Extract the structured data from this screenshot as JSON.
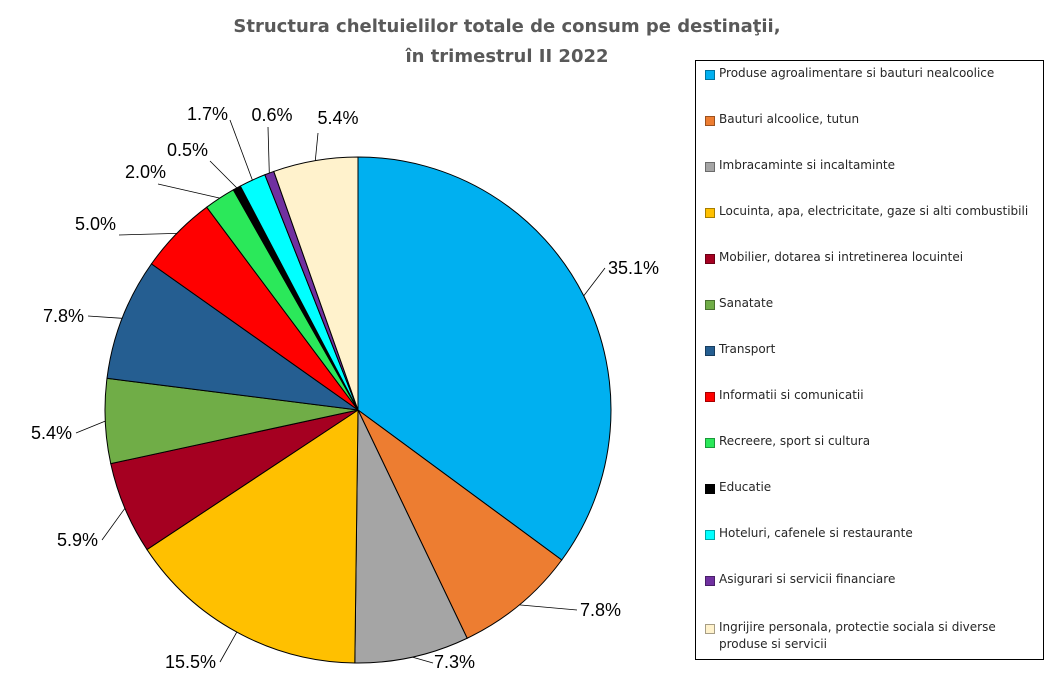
{
  "chart_data": {
    "type": "pie",
    "title": "Structura cheltuielilor totale de consum pe destinaţii,",
    "subtitle": "în trimestrul II 2022",
    "legend_position": "right",
    "slices": [
      {
        "name": "Produse agroalimentare si bauturi nealcoolice",
        "value": 35.1,
        "label": "35.1%",
        "color": "#00B0F0"
      },
      {
        "name": "Bauturi alcoolice, tutun",
        "value": 7.8,
        "label": "7.8%",
        "color": "#ED7D31"
      },
      {
        "name": "Imbracaminte si incaltaminte",
        "value": 7.3,
        "label": "7.3%",
        "color": "#A5A5A5"
      },
      {
        "name": "Locuinta, apa, electricitate, gaze si alti combustibili",
        "value": 15.5,
        "label": "15.5%",
        "color": "#FFC000"
      },
      {
        "name": "Mobilier, dotarea si intretinerea locuintei",
        "value": 5.9,
        "label": "5.9%",
        "color": "#A50021"
      },
      {
        "name": "Sanatate",
        "value": 5.4,
        "label": "5.4%",
        "color": "#70AD47"
      },
      {
        "name": "Transport",
        "value": 7.8,
        "label": "7.8%",
        "color": "#255E91"
      },
      {
        "name": "Informatii si comunicatii",
        "value": 5.0,
        "label": "5.0%",
        "color": "#FF0000"
      },
      {
        "name": "Recreere, sport si cultura",
        "value": 2.0,
        "label": "2.0%",
        "color": "#2BE85A"
      },
      {
        "name": "Educatie",
        "value": 0.5,
        "label": "0.5%",
        "color": "#000000"
      },
      {
        "name": "Hoteluri, cafenele si restaurante",
        "value": 1.7,
        "label": "1.7%",
        "color": "#00FFFF"
      },
      {
        "name": "Asigurari si servicii financiare",
        "value": 0.6,
        "label": "0.6%",
        "color": "#7030A0"
      },
      {
        "name": "Ingrijire personala, protectie sociala si diverse produse si servicii",
        "value": 5.4,
        "label": "5.4%",
        "color": "#FFF2CC"
      }
    ]
  }
}
